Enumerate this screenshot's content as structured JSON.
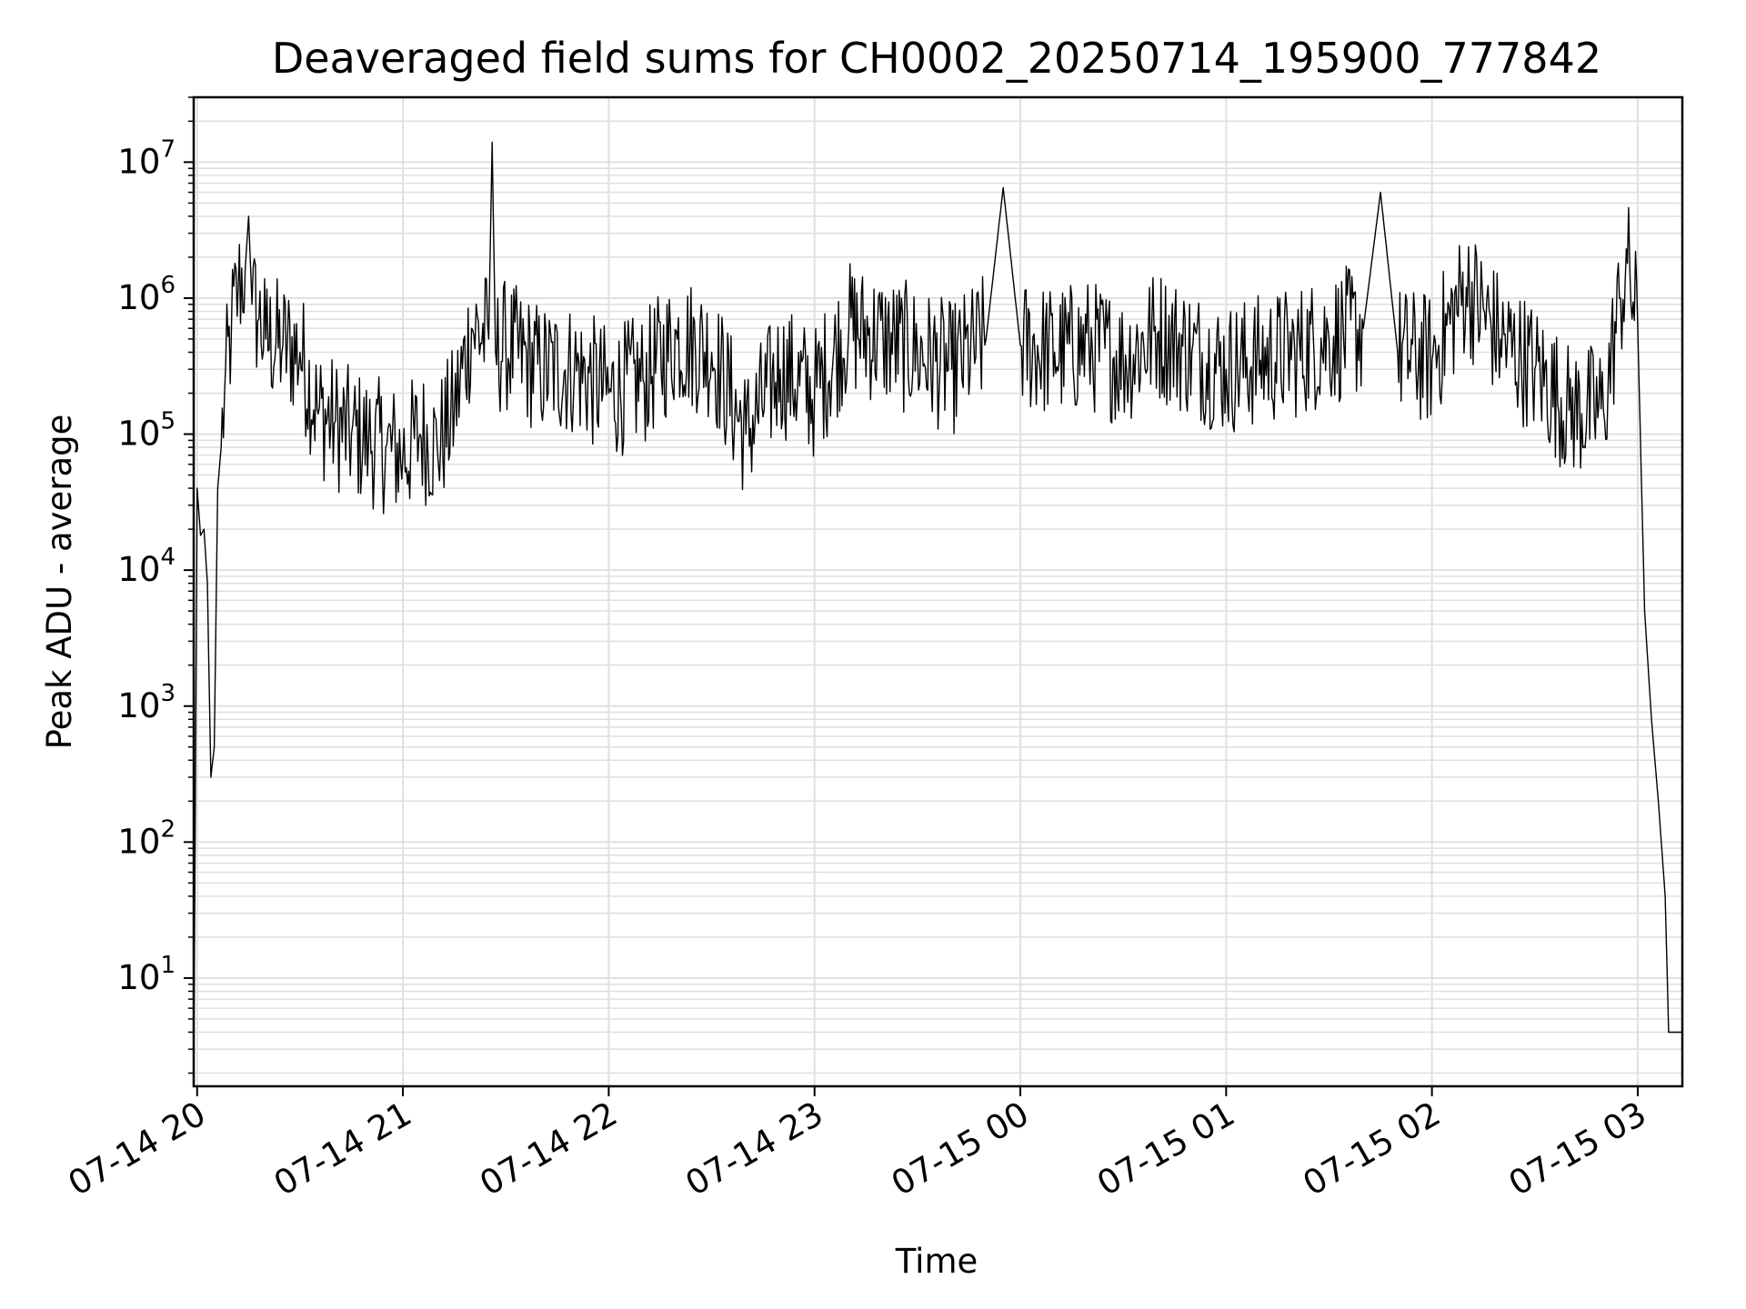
{
  "chart_data": {
    "type": "line",
    "title": "Deaveraged field sums for CH0002_20250714_195900_777842",
    "xlabel": "Time",
    "ylabel": "Peak ADU - average",
    "yscale": "log",
    "xlim": [
      "2025-07-14 19:59",
      "2025-07-15 03:13"
    ],
    "ylim": [
      1.6,
      30000000
    ],
    "grid": true,
    "line_color": "#000000",
    "grid_color": "#e0e0e0",
    "x_ticks": [
      "07-14 20",
      "07-14 21",
      "07-14 22",
      "07-14 23",
      "07-15 00",
      "07-15 01",
      "07-15 02",
      "07-15 03"
    ],
    "y_ticks": [
      {
        "base": "10",
        "exp": "1"
      },
      {
        "base": "10",
        "exp": "2"
      },
      {
        "base": "10",
        "exp": "3"
      },
      {
        "base": "10",
        "exp": "4"
      },
      {
        "base": "10",
        "exp": "5"
      },
      {
        "base": "10",
        "exp": "6"
      },
      {
        "base": "10",
        "exp": "7"
      }
    ],
    "series": [
      {
        "x": [
          "2025-07-14 19:59",
          "2025-07-14 20:00",
          "2025-07-14 20:01",
          "2025-07-14 20:02",
          "2025-07-14 20:03",
          "2025-07-14 20:04",
          "2025-07-14 20:05",
          "2025-07-14 20:06",
          "2025-07-14 20:07",
          "2025-07-14 20:08",
          "2025-07-14 20:10",
          "2025-07-14 20:12",
          "2025-07-14 20:14",
          "2025-07-14 20:15",
          "2025-07-14 20:16",
          "2025-07-14 20:18",
          "2025-07-14 20:20",
          "2025-07-14 20:25",
          "2025-07-14 20:30",
          "2025-07-14 20:35",
          "2025-07-14 20:40",
          "2025-07-14 20:45",
          "2025-07-14 20:50",
          "2025-07-14 20:55",
          "2025-07-14 21:00",
          "2025-07-14 21:05",
          "2025-07-14 21:10",
          "2025-07-14 21:15",
          "2025-07-14 21:20",
          "2025-07-14 21:25",
          "2025-07-14 21:26",
          "2025-07-14 21:27",
          "2025-07-14 21:30",
          "2025-07-14 21:40",
          "2025-07-14 21:50",
          "2025-07-14 22:00",
          "2025-07-14 22:10",
          "2025-07-14 22:20",
          "2025-07-14 22:30",
          "2025-07-14 22:40",
          "2025-07-14 22:50",
          "2025-07-14 23:00",
          "2025-07-14 23:10",
          "2025-07-14 23:20",
          "2025-07-14 23:30",
          "2025-07-14 23:40",
          "2025-07-14 23:50",
          "2025-07-14 23:55",
          "2025-07-15 00:00",
          "2025-07-15 00:10",
          "2025-07-15 00:20",
          "2025-07-15 00:30",
          "2025-07-15 00:40",
          "2025-07-15 00:50",
          "2025-07-15 01:00",
          "2025-07-15 01:10",
          "2025-07-15 01:20",
          "2025-07-15 01:30",
          "2025-07-15 01:40",
          "2025-07-15 01:45",
          "2025-07-15 01:50",
          "2025-07-15 02:00",
          "2025-07-15 02:10",
          "2025-07-15 02:20",
          "2025-07-15 02:30",
          "2025-07-15 02:40",
          "2025-07-15 02:50",
          "2025-07-15 02:55",
          "2025-07-15 02:57",
          "2025-07-15 03:00",
          "2025-07-15 03:02",
          "2025-07-15 03:04",
          "2025-07-15 03:06",
          "2025-07-15 03:08",
          "2025-07-15 03:09",
          "2025-07-15 03:10",
          "2025-07-15 03:12",
          "2025-07-15 03:13"
        ],
        "y": [
          2,
          40000,
          18000,
          20000,
          8000,
          300,
          500,
          40000,
          80000,
          200000,
          600000,
          1200000,
          1600000,
          4000000,
          900000,
          700000,
          500000,
          450000,
          400000,
          150000,
          120000,
          100000,
          90000,
          80000,
          70000,
          100000,
          80000,
          150000,
          600000,
          500000,
          14000000,
          400000,
          450000,
          300000,
          300000,
          200000,
          250000,
          500000,
          400000,
          100000,
          300000,
          200000,
          600000,
          500000,
          400000,
          300000,
          500000,
          6500000,
          450000,
          400000,
          450000,
          350000,
          550000,
          400000,
          300000,
          350000,
          400000,
          500000,
          600000,
          6000000,
          400000,
          350000,
          1200000,
          500000,
          300000,
          150000,
          150000,
          1000000,
          1800000,
          600000,
          5000,
          800,
          200,
          40,
          4,
          4,
          4,
          4
        ]
      }
    ]
  }
}
